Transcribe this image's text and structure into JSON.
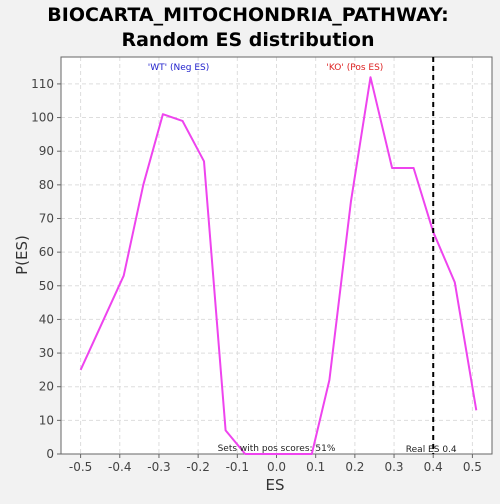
{
  "chart_data": {
    "type": "line",
    "title": [
      "BIOCARTA_MITOCHONDRIA_PATHWAY:",
      "Random ES distribution"
    ],
    "xlabel": "ES",
    "ylabel": "P(ES)",
    "xlim": [
      -0.55,
      0.55
    ],
    "ylim": [
      0,
      118
    ],
    "x_ticks": [
      -0.5,
      -0.4,
      -0.3,
      -0.2,
      -0.1,
      0.0,
      0.1,
      0.2,
      0.3,
      0.4,
      0.5
    ],
    "x_tick_labels": [
      "-0.5",
      "-0.4",
      "-0.3",
      "-0.2",
      "-0.1",
      "0.0",
      "0.1",
      "0.2",
      "0.3",
      "0.4",
      "0.5"
    ],
    "y_ticks": [
      0,
      10,
      20,
      30,
      40,
      50,
      60,
      70,
      80,
      90,
      100,
      110
    ],
    "y_tick_labels": [
      "0",
      "10",
      "20",
      "30",
      "40",
      "50",
      "60",
      "70",
      "80",
      "90",
      "100",
      "110"
    ],
    "grid": true,
    "series": [
      {
        "color": "#ee44ee",
        "x": [
          -0.5,
          -0.39,
          -0.34,
          -0.29,
          -0.24,
          -0.185,
          -0.13,
          -0.08,
          -0.03,
          0.02,
          0.09,
          0.135,
          0.19,
          0.24,
          0.295,
          0.35,
          0.4,
          0.455,
          0.51
        ],
        "y": [
          25,
          53,
          80,
          101,
          99,
          87,
          7,
          0,
          0,
          0,
          0,
          22,
          75,
          112,
          85,
          85,
          66,
          51,
          13
        ]
      }
    ],
    "reference_line": {
      "x": 0.4,
      "label": "Real ES 0.4",
      "color": "#000000",
      "style": "dashed"
    },
    "group_labels": [
      {
        "text": "'WT' (Neg ES)",
        "x": -0.25,
        "color": "#2222cc"
      },
      {
        "text": "'KO' (Pos ES)",
        "x": 0.2,
        "color": "#dd2222"
      }
    ],
    "annotation": "Sets with pos scores: 51%",
    "colors": {
      "background": "#f2f2f2",
      "plot_background": "#ffffff",
      "grid": "#dddddd",
      "axis": "#666666"
    }
  }
}
